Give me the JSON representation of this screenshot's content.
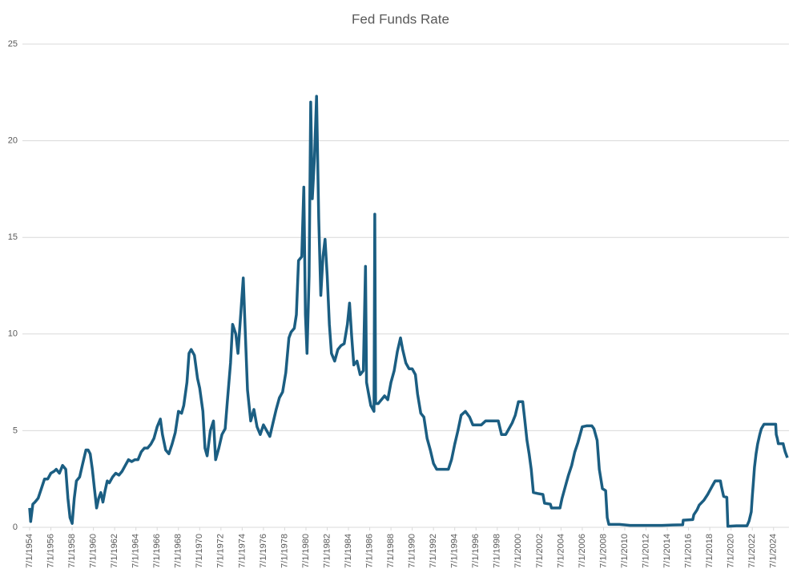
{
  "chart_data": {
    "type": "line",
    "title": "Fed Funds Rate",
    "color": "#1b5e82",
    "grid": true,
    "x": [
      1954.5,
      1954.6,
      1954.8,
      1955.0,
      1955.3,
      1955.6,
      1955.9,
      1956.2,
      1956.5,
      1956.8,
      1957.0,
      1957.3,
      1957.6,
      1957.9,
      1958.1,
      1958.3,
      1958.5,
      1958.7,
      1958.9,
      1959.2,
      1959.5,
      1959.8,
      1960.0,
      1960.2,
      1960.4,
      1960.6,
      1960.8,
      1961.0,
      1961.2,
      1961.4,
      1961.6,
      1961.8,
      1962.0,
      1962.3,
      1962.6,
      1962.9,
      1963.2,
      1963.5,
      1963.8,
      1964.1,
      1964.4,
      1964.7,
      1965.0,
      1965.3,
      1965.6,
      1965.9,
      1966.2,
      1966.5,
      1966.8,
      1967.0,
      1967.3,
      1967.6,
      1967.9,
      1968.2,
      1968.5,
      1968.8,
      1969.0,
      1969.3,
      1969.5,
      1969.7,
      1970.0,
      1970.3,
      1970.5,
      1970.8,
      1971.0,
      1971.2,
      1971.5,
      1971.8,
      1972.0,
      1972.3,
      1972.6,
      1972.9,
      1973.1,
      1973.4,
      1973.6,
      1973.9,
      1974.1,
      1974.4,
      1974.6,
      1974.8,
      1975.0,
      1975.3,
      1975.6,
      1975.9,
      1976.2,
      1976.5,
      1976.8,
      1977.1,
      1977.4,
      1977.7,
      1978.0,
      1978.3,
      1978.6,
      1978.9,
      1979.1,
      1979.4,
      1979.6,
      1979.8,
      1980.1,
      1980.3,
      1980.45,
      1980.6,
      1980.8,
      1980.95,
      1981.1,
      1981.3,
      1981.5,
      1981.7,
      1981.9,
      1982.1,
      1982.3,
      1982.5,
      1982.7,
      1982.9,
      1983.2,
      1983.5,
      1983.8,
      1984.1,
      1984.4,
      1984.6,
      1984.8,
      1985.0,
      1985.3,
      1985.6,
      1985.9,
      1986.1,
      1986.2,
      1986.4,
      1986.6,
      1986.9,
      1986.98,
      1987.05,
      1987.3,
      1987.6,
      1987.9,
      1988.2,
      1988.5,
      1988.8,
      1989.1,
      1989.4,
      1989.6,
      1989.9,
      1990.2,
      1990.5,
      1990.8,
      1991.0,
      1991.3,
      1991.6,
      1991.9,
      1992.2,
      1992.5,
      1992.8,
      1993.2,
      1993.5,
      1993.9,
      1994.2,
      1994.5,
      1994.8,
      1995.1,
      1995.5,
      1995.9,
      1996.2,
      1996.6,
      1997.0,
      1997.4,
      1997.8,
      1998.2,
      1998.6,
      1998.9,
      1999.3,
      1999.6,
      1999.9,
      2000.2,
      2000.5,
      2000.9,
      2001.1,
      2001.3,
      2001.5,
      2001.7,
      2001.9,
      2002.3,
      2002.8,
      2002.95,
      2003.5,
      2003.6,
      2004.4,
      2004.6,
      2004.9,
      2005.2,
      2005.5,
      2005.8,
      2006.1,
      2006.5,
      2006.9,
      2007.4,
      2007.6,
      2007.9,
      2008.1,
      2008.4,
      2008.7,
      2008.85,
      2009.0,
      2010.0,
      2011.0,
      2012.0,
      2013.0,
      2014.0,
      2015.0,
      2015.95,
      2016.0,
      2016.9,
      2017.0,
      2017.3,
      2017.5,
      2017.95,
      2018.3,
      2018.5,
      2018.8,
      2019.0,
      2019.5,
      2019.6,
      2019.8,
      2020.1,
      2020.2,
      2021.0,
      2022.0,
      2022.2,
      2022.4,
      2022.5,
      2022.6,
      2022.7,
      2022.85,
      2023.0,
      2023.2,
      2023.35,
      2023.6,
      2024.7,
      2024.75,
      2024.85,
      2024.95,
      2025.4,
      2025.5,
      2025.6,
      2025.8
    ],
    "values": [
      1.0,
      0.3,
      1.2,
      1.3,
      1.5,
      2.0,
      2.5,
      2.5,
      2.8,
      2.9,
      3.0,
      2.8,
      3.2,
      3.0,
      1.5,
      0.5,
      0.2,
      1.5,
      2.4,
      2.6,
      3.3,
      4.0,
      4.0,
      3.8,
      3.0,
      2.0,
      1.0,
      1.5,
      1.8,
      1.3,
      1.9,
      2.4,
      2.3,
      2.6,
      2.8,
      2.7,
      2.9,
      3.2,
      3.5,
      3.4,
      3.5,
      3.5,
      3.9,
      4.1,
      4.1,
      4.3,
      4.6,
      5.2,
      5.6,
      4.8,
      4.0,
      3.8,
      4.3,
      4.9,
      6.0,
      5.9,
      6.3,
      7.5,
      9.0,
      9.2,
      8.9,
      7.7,
      7.2,
      6.0,
      4.1,
      3.7,
      5.0,
      5.5,
      3.5,
      4.1,
      4.8,
      5.1,
      6.5,
      8.5,
      10.5,
      10.0,
      9.0,
      11.3,
      12.9,
      10.0,
      7.1,
      5.5,
      6.1,
      5.2,
      4.8,
      5.3,
      5.0,
      4.7,
      5.4,
      6.1,
      6.7,
      7.0,
      8.0,
      9.8,
      10.1,
      10.3,
      11.0,
      13.8,
      14.0,
      17.6,
      11.0,
      9.0,
      13.0,
      22.0,
      17.0,
      19.1,
      22.3,
      16.0,
      12.0,
      14.0,
      14.9,
      13.0,
      10.5,
      9.0,
      8.6,
      9.2,
      9.4,
      9.5,
      10.5,
      11.6,
      9.9,
      8.4,
      8.6,
      7.9,
      8.1,
      13.5,
      7.5,
      6.9,
      6.3,
      6.0,
      16.2,
      6.4,
      6.4,
      6.6,
      6.8,
      6.6,
      7.5,
      8.1,
      9.1,
      9.8,
      9.2,
      8.5,
      8.2,
      8.2,
      7.9,
      6.9,
      5.9,
      5.7,
      4.6,
      4.0,
      3.3,
      3.0,
      3.0,
      3.0,
      3.0,
      3.5,
      4.3,
      5.0,
      5.8,
      6.0,
      5.7,
      5.3,
      5.3,
      5.3,
      5.5,
      5.5,
      5.5,
      5.5,
      4.8,
      4.8,
      5.1,
      5.4,
      5.8,
      6.5,
      6.5,
      5.5,
      4.5,
      3.8,
      3.0,
      1.8,
      1.75,
      1.7,
      1.25,
      1.2,
      1.0,
      1.0,
      1.5,
      2.1,
      2.7,
      3.2,
      3.9,
      4.4,
      5.2,
      5.25,
      5.25,
      5.1,
      4.5,
      3.0,
      2.0,
      1.9,
      0.5,
      0.15,
      0.15,
      0.1,
      0.1,
      0.1,
      0.1,
      0.12,
      0.13,
      0.37,
      0.4,
      0.65,
      0.9,
      1.15,
      1.4,
      1.7,
      1.9,
      2.2,
      2.4,
      2.4,
      2.1,
      1.6,
      1.55,
      0.05,
      0.08,
      0.08,
      0.33,
      0.8,
      1.6,
      2.3,
      3.1,
      3.8,
      4.3,
      4.8,
      5.1,
      5.33,
      5.33,
      4.8,
      4.6,
      4.33,
      4.33,
      4.1,
      3.9,
      3.6
    ],
    "xlim": [
      1954.5,
      2025.8
    ],
    "xticks": [
      {
        "value": 1954.5,
        "label": "7/1/1954"
      },
      {
        "value": 1956.5,
        "label": "7/1/1956"
      },
      {
        "value": 1958.5,
        "label": "7/1/1958"
      },
      {
        "value": 1960.5,
        "label": "7/1/1960"
      },
      {
        "value": 1962.5,
        "label": "7/1/1962"
      },
      {
        "value": 1964.5,
        "label": "7/1/1964"
      },
      {
        "value": 1966.5,
        "label": "7/1/1966"
      },
      {
        "value": 1968.5,
        "label": "7/1/1968"
      },
      {
        "value": 1970.5,
        "label": "7/1/1970"
      },
      {
        "value": 1972.5,
        "label": "7/1/1972"
      },
      {
        "value": 1974.5,
        "label": "7/1/1974"
      },
      {
        "value": 1976.5,
        "label": "7/1/1976"
      },
      {
        "value": 1978.5,
        "label": "7/1/1978"
      },
      {
        "value": 1980.5,
        "label": "7/1/1980"
      },
      {
        "value": 1982.5,
        "label": "7/1/1982"
      },
      {
        "value": 1984.5,
        "label": "7/1/1984"
      },
      {
        "value": 1986.5,
        "label": "7/1/1986"
      },
      {
        "value": 1988.5,
        "label": "7/1/1988"
      },
      {
        "value": 1990.5,
        "label": "7/1/1990"
      },
      {
        "value": 1992.5,
        "label": "7/1/1992"
      },
      {
        "value": 1994.5,
        "label": "7/1/1994"
      },
      {
        "value": 1996.5,
        "label": "7/1/1996"
      },
      {
        "value": 1998.5,
        "label": "7/1/1998"
      },
      {
        "value": 2000.5,
        "label": "7/1/2000"
      },
      {
        "value": 2002.5,
        "label": "7/1/2002"
      },
      {
        "value": 2004.5,
        "label": "7/1/2004"
      },
      {
        "value": 2006.5,
        "label": "7/1/2006"
      },
      {
        "value": 2008.5,
        "label": "7/1/2008"
      },
      {
        "value": 2010.5,
        "label": "7/1/2010"
      },
      {
        "value": 2012.5,
        "label": "7/1/2012"
      },
      {
        "value": 2014.5,
        "label": "7/1/2014"
      },
      {
        "value": 2016.5,
        "label": "7/1/2016"
      },
      {
        "value": 2018.5,
        "label": "7/1/2018"
      },
      {
        "value": 2020.5,
        "label": "7/1/2020"
      },
      {
        "value": 2022.5,
        "label": "7/1/2022"
      },
      {
        "value": 2024.5,
        "label": "7/1/2024"
      }
    ],
    "ylim": [
      0,
      25
    ],
    "yticks": [
      0,
      5,
      10,
      15,
      20,
      25
    ]
  }
}
